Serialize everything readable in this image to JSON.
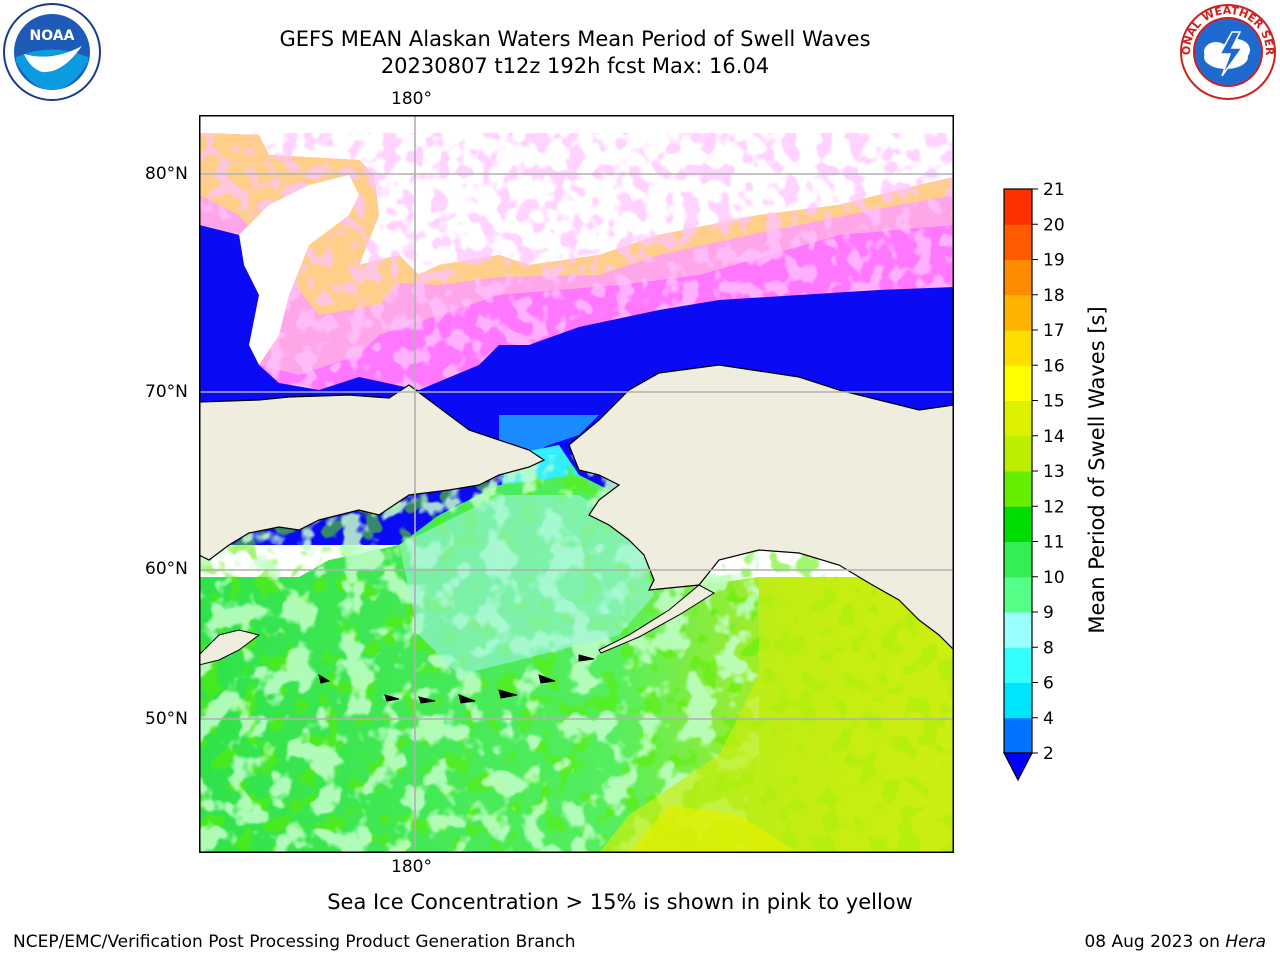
{
  "header": {
    "title_line1": "GEFS MEAN Alaskan Waters Mean Period of Swell Waves",
    "title_line2": "20230807 t12z 192h fcst   Max: 16.04"
  },
  "logos": {
    "left": {
      "name": "noaa-logo",
      "text": "NOAA"
    },
    "right": {
      "name": "national-weather-service-logo",
      "text": "NATIONAL WEATHER SERVICE"
    }
  },
  "map": {
    "top_lon_label": "180°",
    "bottom_lon_label": "180°",
    "lat_labels": [
      "80°N",
      "70°N",
      "60°N",
      "50°N"
    ],
    "land_color": "#efedde",
    "ice_colors": [
      "#ff66ff",
      "#ff99ff",
      "#ffbb88",
      "#ffdd55"
    ],
    "open_arctic_color": "#0000ff"
  },
  "colorbar": {
    "title": "Mean Period of Swell Waves [s]",
    "ticks": [
      "2",
      "4",
      "6",
      "8",
      "9",
      "10",
      "11",
      "12",
      "13",
      "14",
      "15",
      "16",
      "17",
      "18",
      "19",
      "20",
      "21"
    ],
    "colors": [
      "#0073ff",
      "#00e5ff",
      "#33ffff",
      "#99ffff",
      "#55ff88",
      "#33ee55",
      "#00dd00",
      "#66ee00",
      "#bbee00",
      "#ddf000",
      "#ffff00",
      "#ffdd00",
      "#ffb300",
      "#ff8c00",
      "#ff5a00",
      "#ff3000",
      "#ff0000"
    ],
    "under_color": "#0000ff"
  },
  "footer": {
    "ice_note": "Sea Ice Concentration > 15% is shown in pink to yellow",
    "left": "NCEP/EMC/Verification Post Processing Product Generation Branch",
    "right_date": "08 Aug 2023 on ",
    "right_machine": "Hera"
  }
}
